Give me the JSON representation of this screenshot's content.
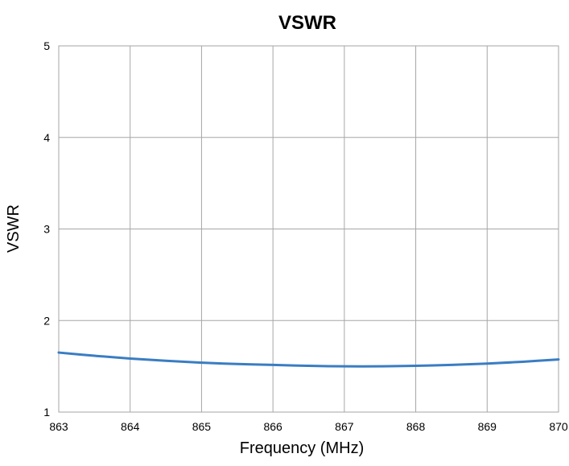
{
  "chart_data": {
    "type": "line",
    "title": "VSWR",
    "xlabel": "Frequency (MHz)",
    "ylabel": "VSWR",
    "xlim": [
      863,
      870
    ],
    "ylim": [
      1,
      5
    ],
    "x_ticks": [
      "863",
      "864",
      "865",
      "866",
      "867",
      "868",
      "869",
      "870"
    ],
    "y_ticks": [
      "1",
      "2",
      "3",
      "4",
      "5"
    ],
    "grid": true,
    "legend": "none",
    "series": [
      {
        "color": "#3a7dc3",
        "x": [
          863,
          863.5,
          864,
          864.5,
          865,
          865.5,
          866,
          866.5,
          867,
          867.5,
          868,
          868.5,
          869,
          869.5,
          870
        ],
        "y": [
          1.65,
          1.615,
          1.585,
          1.56,
          1.54,
          1.525,
          1.515,
          1.505,
          1.5,
          1.5,
          1.505,
          1.515,
          1.53,
          1.55,
          1.575
        ]
      }
    ]
  }
}
